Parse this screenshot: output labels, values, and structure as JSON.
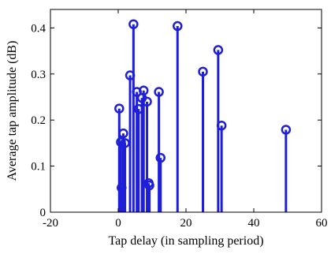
{
  "chart_data": {
    "type": "stem",
    "title": "",
    "xlabel": "Tap delay (in sampling period)",
    "ylabel": "Average tap amplitude (dB)",
    "xlim": [
      -20,
      60
    ],
    "ylim": [
      0,
      0.44
    ],
    "xticks": [
      "-20",
      "0",
      "20",
      "40",
      "60"
    ],
    "yticks": [
      "0",
      "0.1",
      "0.2",
      "0.3",
      "0.4"
    ],
    "grid": false,
    "color": "#1f1fd8",
    "points": [
      {
        "x": 0.3,
        "y": 0.225
      },
      {
        "x": 0.8,
        "y": 0.152
      },
      {
        "x": 1.0,
        "y": 0.053
      },
      {
        "x": 1.5,
        "y": 0.171
      },
      {
        "x": 2.0,
        "y": 0.15
      },
      {
        "x": 3.5,
        "y": 0.297
      },
      {
        "x": 4.5,
        "y": 0.408
      },
      {
        "x": 5.5,
        "y": 0.261
      },
      {
        "x": 6.0,
        "y": 0.224
      },
      {
        "x": 7.0,
        "y": 0.248
      },
      {
        "x": 7.5,
        "y": 0.264
      },
      {
        "x": 8.5,
        "y": 0.24
      },
      {
        "x": 9.0,
        "y": 0.063
      },
      {
        "x": 9.2,
        "y": 0.058
      },
      {
        "x": 12.0,
        "y": 0.261
      },
      {
        "x": 12.5,
        "y": 0.118
      },
      {
        "x": 17.5,
        "y": 0.404
      },
      {
        "x": 25.0,
        "y": 0.305
      },
      {
        "x": 29.5,
        "y": 0.352
      },
      {
        "x": 30.5,
        "y": 0.188
      },
      {
        "x": 49.5,
        "y": 0.179
      }
    ]
  }
}
